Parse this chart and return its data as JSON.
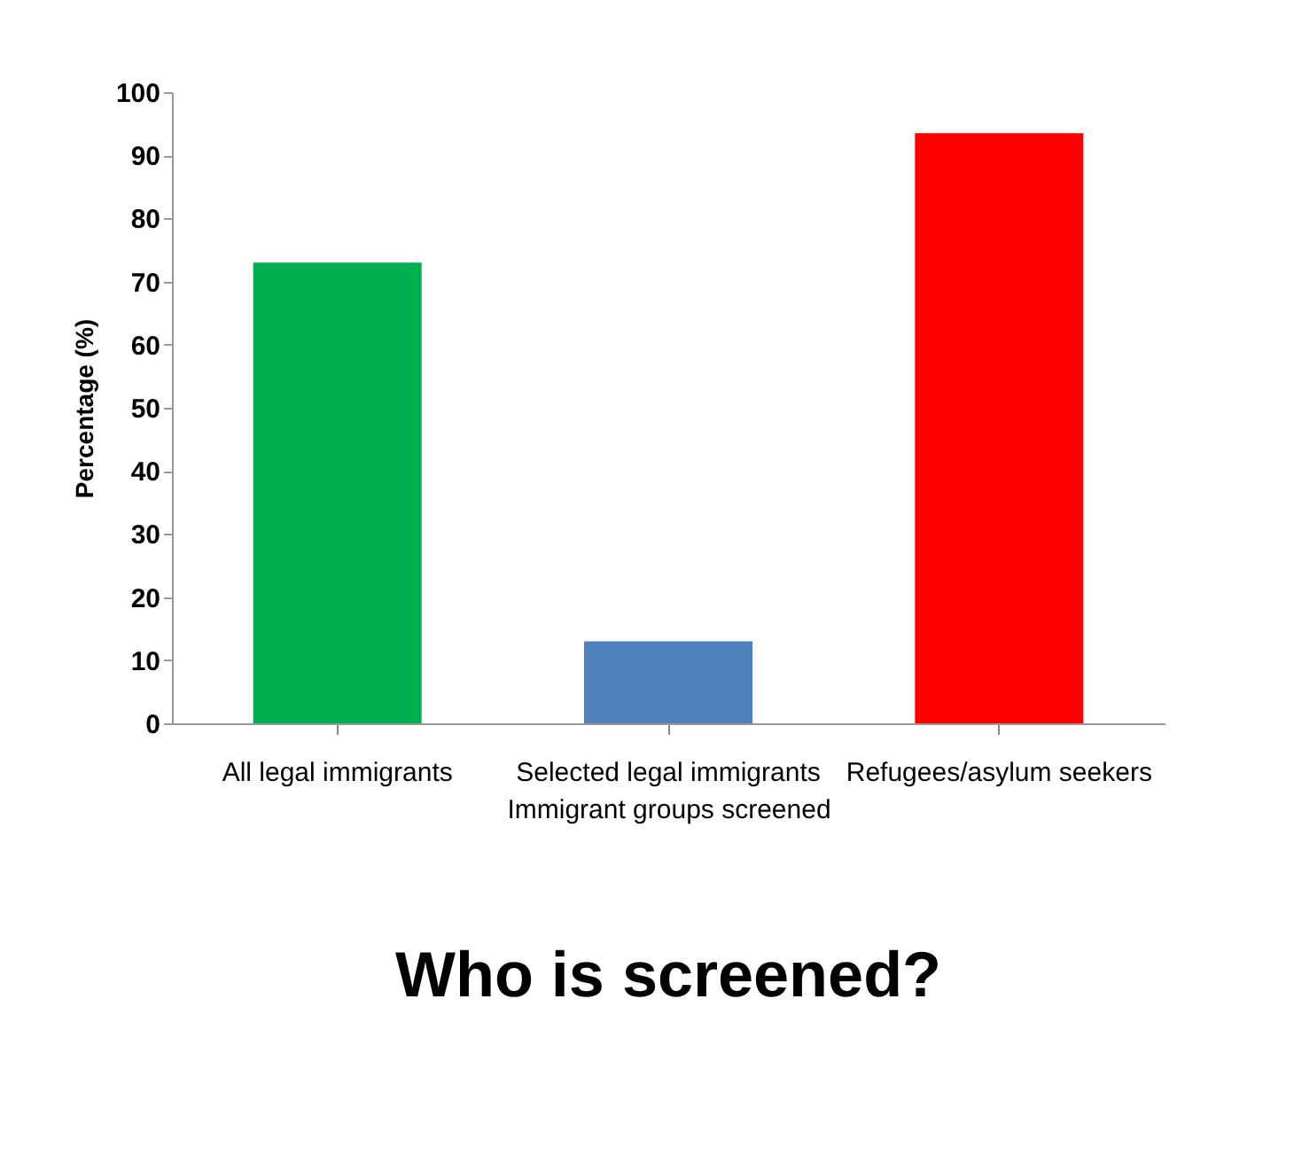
{
  "chart_data": {
    "type": "bar",
    "title": "Who is screened?",
    "xlabel": "Immigrant groups screened",
    "ylabel": "Percentage (%)",
    "categories": [
      "All legal immigrants",
      "Selected legal immigrants",
      "Refugees/asylum seekers"
    ],
    "values": [
      73,
      13,
      93.5
    ],
    "colors": [
      "#00b050",
      "#4f81bd",
      "#ff0000"
    ],
    "ylim": [
      0,
      100
    ],
    "yticks": [
      0,
      10,
      20,
      30,
      40,
      50,
      60,
      70,
      80,
      90,
      100
    ],
    "grid": false
  }
}
